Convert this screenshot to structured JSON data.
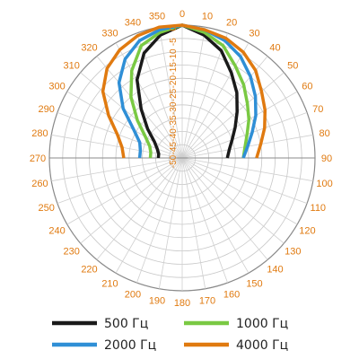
{
  "chart_data": {
    "type": "polar-line",
    "angle_unit": "degrees",
    "angle_ticks": [
      "0",
      "10",
      "20",
      "30",
      "40",
      "50",
      "60",
      "70",
      "80",
      "90",
      "100",
      "110",
      "120",
      "130",
      "140",
      "150",
      "160",
      "170",
      "180",
      "190",
      "200",
      "210",
      "220",
      "230",
      "240",
      "250",
      "260",
      "270",
      "280",
      "290",
      "300",
      "310",
      "320",
      "330",
      "340",
      "350"
    ],
    "radial_ticks": [
      "0",
      "-5",
      "-10",
      "-15",
      "-20",
      "-25",
      "-30",
      "-35",
      "-40",
      "-45",
      "-50"
    ],
    "radial_range": [
      -50,
      0
    ],
    "label_color": "#e07a10",
    "grid": true,
    "legend_position": "bottom",
    "series": [
      {
        "name": "500 Гц",
        "color": "#1a1a1a",
        "points": [
          [
            270,
            -41
          ],
          [
            280,
            -41
          ],
          [
            290,
            -40
          ],
          [
            300,
            -38
          ],
          [
            310,
            -33
          ],
          [
            320,
            -26
          ],
          [
            330,
            -16
          ],
          [
            340,
            -8
          ],
          [
            350,
            -3
          ],
          [
            0,
            0
          ],
          [
            10,
            -3
          ],
          [
            20,
            -7
          ],
          [
            30,
            -13
          ],
          [
            40,
            -18
          ],
          [
            50,
            -23
          ],
          [
            60,
            -27
          ],
          [
            70,
            -30
          ],
          [
            80,
            -32
          ],
          [
            90,
            -33
          ]
        ]
      },
      {
        "name": "1000 Гц",
        "color": "#7ac943",
        "points": [
          [
            270,
            -38
          ],
          [
            280,
            -38
          ],
          [
            290,
            -37
          ],
          [
            300,
            -34
          ],
          [
            310,
            -28
          ],
          [
            320,
            -20
          ],
          [
            330,
            -12
          ],
          [
            340,
            -5
          ],
          [
            350,
            -2
          ],
          [
            0,
            0
          ],
          [
            10,
            -2
          ],
          [
            20,
            -5
          ],
          [
            30,
            -10
          ],
          [
            40,
            -14
          ],
          [
            50,
            -18
          ],
          [
            60,
            -21
          ],
          [
            70,
            -24
          ],
          [
            80,
            -26
          ],
          [
            90,
            -27
          ]
        ]
      },
      {
        "name": "2000 Гц",
        "color": "#2f8fd6",
        "points": [
          [
            270,
            -34
          ],
          [
            280,
            -34
          ],
          [
            290,
            -33
          ],
          [
            300,
            -29
          ],
          [
            310,
            -21
          ],
          [
            320,
            -13
          ],
          [
            330,
            -7
          ],
          [
            340,
            -3
          ],
          [
            350,
            -1
          ],
          [
            0,
            0
          ],
          [
            10,
            -1
          ],
          [
            20,
            -3
          ],
          [
            30,
            -6
          ],
          [
            40,
            -10
          ],
          [
            50,
            -14
          ],
          [
            60,
            -18
          ],
          [
            70,
            -22
          ],
          [
            80,
            -25
          ],
          [
            90,
            -27
          ]
        ]
      },
      {
        "name": "4000 Гц",
        "color": "#e07a10",
        "points": [
          [
            270,
            -28
          ],
          [
            280,
            -27
          ],
          [
            290,
            -24
          ],
          [
            300,
            -18
          ],
          [
            310,
            -11
          ],
          [
            320,
            -6
          ],
          [
            330,
            -3
          ],
          [
            340,
            -1
          ],
          [
            350,
            0
          ],
          [
            0,
            0
          ],
          [
            10,
            -1
          ],
          [
            20,
            -2
          ],
          [
            30,
            -4
          ],
          [
            40,
            -7
          ],
          [
            50,
            -11
          ],
          [
            60,
            -14
          ],
          [
            70,
            -17
          ],
          [
            80,
            -20
          ],
          [
            90,
            -22
          ]
        ]
      }
    ]
  }
}
